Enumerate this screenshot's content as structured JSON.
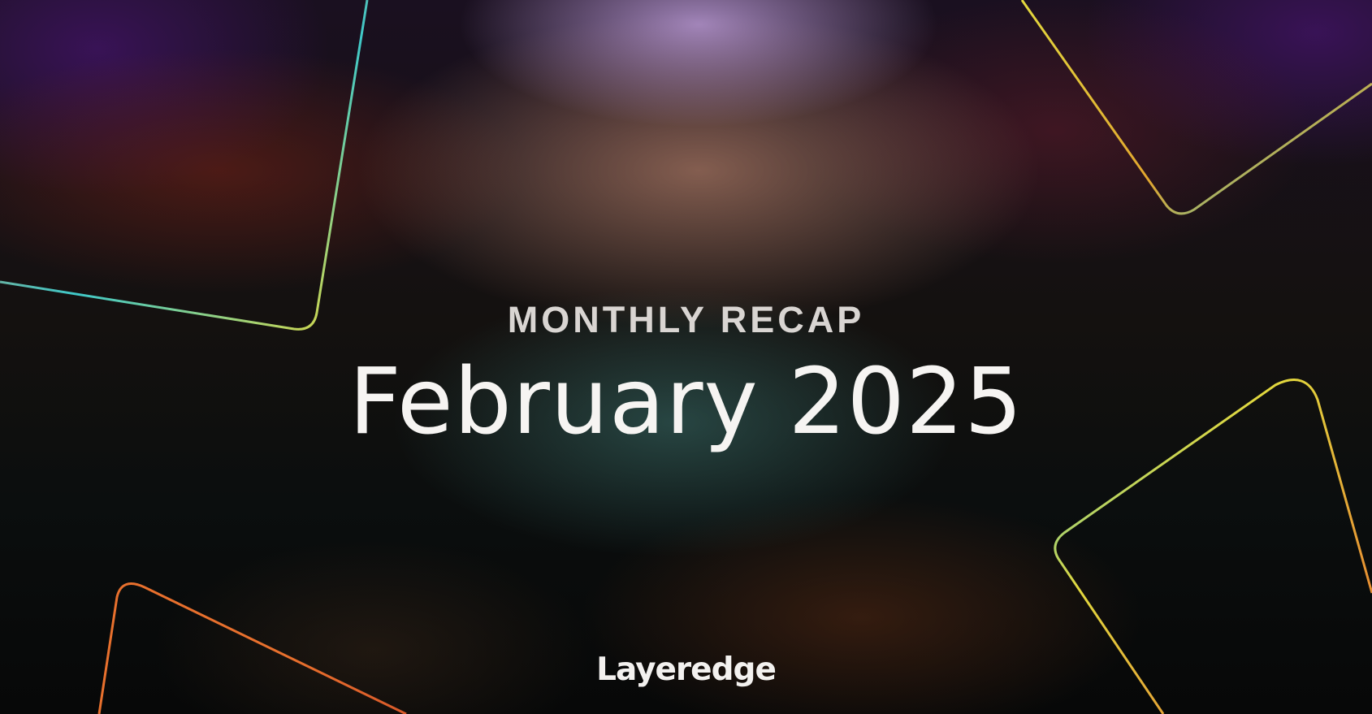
{
  "banner": {
    "eyebrow": "MONTHLY RECAP",
    "title": "February 2025",
    "brand": "Layeredge"
  },
  "colors": {
    "text_primary": "#f6f4f2",
    "text_secondary": "#d9d5d2",
    "frame_yellow": "#e2d83e",
    "frame_orange": "#e8702d",
    "frame_cyan": "#3fc8c8"
  }
}
